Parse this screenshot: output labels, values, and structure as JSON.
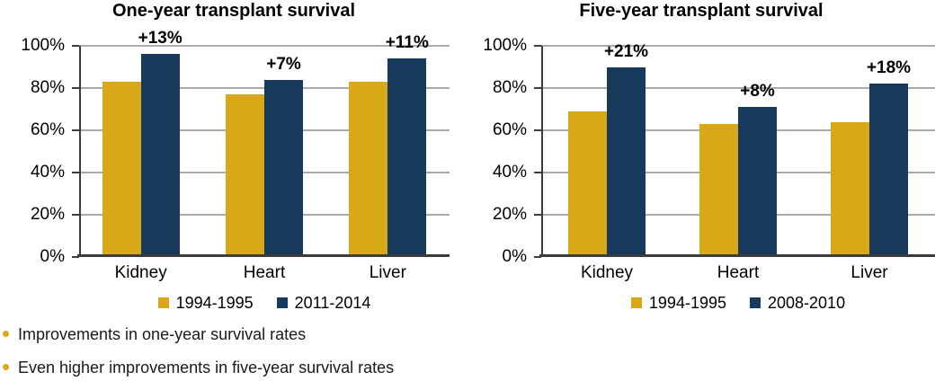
{
  "colors": {
    "gold": "#D9A819",
    "navy": "#17395C",
    "gridline": "#AAAAAA",
    "axis": "#3C3C3C"
  },
  "chart_data": [
    {
      "type": "bar",
      "title": "One-year transplant survival",
      "categories": [
        "Kidney",
        "Heart",
        "Liver"
      ],
      "series": [
        {
          "name": "1994-1995",
          "color": "gold",
          "values": [
            83,
            77,
            83
          ]
        },
        {
          "name": "2011-2014",
          "color": "navy",
          "values": [
            96,
            84,
            94
          ]
        }
      ],
      "annotations": [
        {
          "category": "Kidney",
          "label": "+13%"
        },
        {
          "category": "Heart",
          "label": "+7%"
        },
        {
          "category": "Liver",
          "label": "+11%"
        }
      ],
      "yticks": [
        0,
        20,
        40,
        60,
        80,
        100
      ],
      "ytick_labels": [
        "0%",
        "20%",
        "40%",
        "60%",
        "80%",
        "100%"
      ],
      "ylim": [
        0,
        100
      ],
      "grid": true,
      "legend_position": "bottom"
    },
    {
      "type": "bar",
      "title": "Five-year transplant survival",
      "categories": [
        "Kidney",
        "Heart",
        "Liver"
      ],
      "series": [
        {
          "name": "1994-1995",
          "color": "gold",
          "values": [
            69,
            63,
            64
          ]
        },
        {
          "name": "2008-2010",
          "color": "navy",
          "values": [
            90,
            71,
            82
          ]
        }
      ],
      "annotations": [
        {
          "category": "Kidney",
          "label": "+21%"
        },
        {
          "category": "Heart",
          "label": "+8%"
        },
        {
          "category": "Liver",
          "label": "+18%"
        }
      ],
      "yticks": [
        0,
        20,
        40,
        60,
        80,
        100
      ],
      "ytick_labels": [
        "0%",
        "20%",
        "40%",
        "60%",
        "80%",
        "100%"
      ],
      "ylim": [
        0,
        100
      ],
      "grid": true,
      "legend_position": "bottom"
    }
  ],
  "bullets": [
    "Improvements in one-year survival rates",
    "Even higher improvements in five-year survival rates"
  ]
}
